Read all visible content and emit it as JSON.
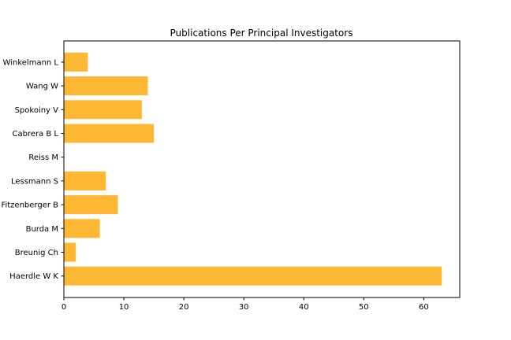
{
  "chart_data": {
    "type": "bar",
    "orientation": "horizontal",
    "title": "Publications Per Principal Investigators",
    "xlabel": "",
    "ylabel": "",
    "categories": [
      "Haerdle W K",
      "Breunig Ch",
      "Burda M",
      "Fitzenberger B",
      "Lessmann S",
      "Reiss M",
      "Cabrera B L",
      "Spokoiny V",
      "Wang W",
      "Winkelmann L"
    ],
    "values": [
      63,
      2,
      6,
      9,
      7,
      0,
      15,
      13,
      14,
      4
    ],
    "xlim": [
      0,
      66
    ],
    "xticks": [
      0,
      10,
      20,
      30,
      40,
      50,
      60
    ],
    "bar_color": "#ffb833",
    "grid": false
  }
}
